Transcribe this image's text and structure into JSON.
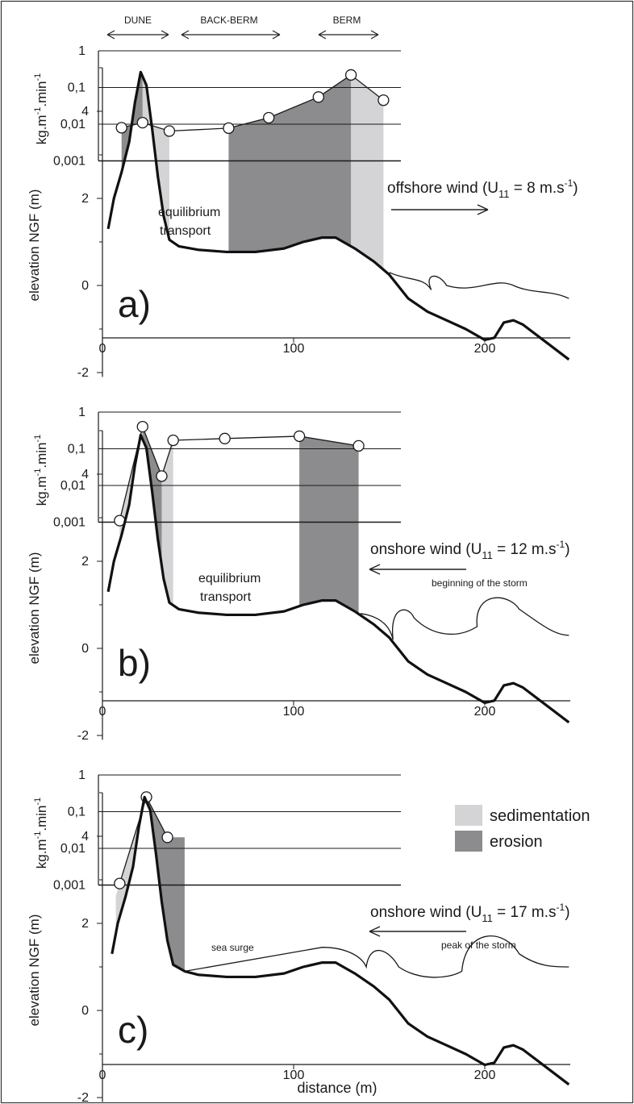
{
  "zones": [
    "DUNE",
    "BACK-BERM",
    "BERM"
  ],
  "axes": {
    "flux_ylabel": "kg.m-1.min-1",
    "flux_ylabel_base": "kg.m",
    "flux_ylabel_exp1": "-1",
    "flux_ylabel_mid": ".min",
    "flux_ylabel_exp2": "-1",
    "flux_ticks": [
      "1",
      "0,1",
      "0,01",
      "0,001"
    ],
    "elev_ylabel": "elevation NGF (m)",
    "elev_ticks": [
      "4",
      "2",
      "0",
      "-2"
    ],
    "x_ticks": [
      "0",
      "100",
      "200"
    ],
    "xlabel": "distance (m)"
  },
  "legend": {
    "sedimentation_label": "sedimentation",
    "erosion_label": "erosion",
    "sedimentation_color": "#d4d4d6",
    "erosion_color": "#8c8c8f"
  },
  "panels": [
    {
      "letter": "a)",
      "wind_main": "offshore wind (U",
      "wind_sub": "11",
      "wind_tail": " = 8 m.s",
      "wind_exp": "-1",
      "wind_close": ")",
      "wind_note": "",
      "annotation_line1": "equilibrium",
      "annotation_line2": "transport",
      "surge_label": ""
    },
    {
      "letter": "b)",
      "wind_main": "onshore wind (U",
      "wind_sub": "11",
      "wind_tail": " = 12 m.s",
      "wind_exp": "-1",
      "wind_close": ")",
      "wind_note": "beginning of the storm",
      "annotation_line1": "equilibrium",
      "annotation_line2": "transport",
      "surge_label": ""
    },
    {
      "letter": "c)",
      "wind_main": "onshore wind (U",
      "wind_sub": "11",
      "wind_tail": " = 17 m.s",
      "wind_exp": "-1",
      "wind_close": ")",
      "wind_note": "peak of the storm",
      "annotation_line1": "",
      "annotation_line2": "",
      "surge_label": "sea surge"
    }
  ],
  "chart_data": [
    {
      "type": "line",
      "panel": "a",
      "x_unit": "m",
      "flux_log_scale": true,
      "flux_ylim": [
        0.001,
        1
      ],
      "elev_ylim": [
        -2,
        5
      ],
      "xlim": [
        0,
        245
      ],
      "flux_points": [
        [
          10,
          0.008
        ],
        [
          21,
          0.011
        ],
        [
          35,
          0.0065
        ],
        [
          66,
          0.0078
        ],
        [
          87,
          0.015
        ],
        [
          113,
          0.055
        ],
        [
          130,
          0.22
        ],
        [
          147,
          0.045
        ]
      ],
      "profile": [
        [
          3,
          1.3
        ],
        [
          6,
          2.0
        ],
        [
          10,
          2.6
        ],
        [
          14,
          3.3
        ],
        [
          17,
          4.2
        ],
        [
          20,
          4.9
        ],
        [
          23,
          4.6
        ],
        [
          26,
          3.6
        ],
        [
          29,
          2.5
        ],
        [
          32,
          1.6
        ],
        [
          35,
          1.05
        ],
        [
          40,
          0.9
        ],
        [
          50,
          0.82
        ],
        [
          65,
          0.77
        ],
        [
          80,
          0.77
        ],
        [
          95,
          0.85
        ],
        [
          105,
          1.0
        ],
        [
          115,
          1.1
        ],
        [
          122,
          1.1
        ],
        [
          132,
          0.85
        ],
        [
          142,
          0.55
        ],
        [
          150,
          0.25
        ],
        [
          160,
          -0.3
        ],
        [
          170,
          -0.6
        ],
        [
          180,
          -0.8
        ],
        [
          190,
          -1.0
        ],
        [
          200,
          -1.25
        ],
        [
          205,
          -1.2
        ],
        [
          210,
          -0.85
        ],
        [
          215,
          -0.8
        ],
        [
          220,
          -0.9
        ],
        [
          232,
          -1.3
        ],
        [
          244,
          -1.7
        ]
      ],
      "sedimentation_x": [
        [
          21,
          35
        ],
        [
          130,
          147
        ]
      ],
      "erosion_x": [
        [
          10,
          21
        ],
        [
          66,
          130
        ]
      ],
      "equilibrium_x": [
        [
          35,
          66
        ]
      ]
    },
    {
      "type": "line",
      "panel": "b",
      "x_unit": "m",
      "flux_log_scale": true,
      "flux_ylim": [
        0.001,
        1
      ],
      "elev_ylim": [
        -2,
        5
      ],
      "xlim": [
        0,
        245
      ],
      "flux_points": [
        [
          9,
          0.0011
        ],
        [
          21,
          0.4
        ],
        [
          31,
          0.018
        ],
        [
          37,
          0.17
        ],
        [
          64,
          0.19
        ],
        [
          103,
          0.22
        ],
        [
          134,
          0.12
        ]
      ],
      "profile": [
        [
          3,
          1.3
        ],
        [
          6,
          2.0
        ],
        [
          10,
          2.6
        ],
        [
          14,
          3.3
        ],
        [
          17,
          4.2
        ],
        [
          20,
          4.9
        ],
        [
          23,
          4.6
        ],
        [
          26,
          3.6
        ],
        [
          29,
          2.5
        ],
        [
          32,
          1.6
        ],
        [
          35,
          1.05
        ],
        [
          40,
          0.9
        ],
        [
          50,
          0.82
        ],
        [
          65,
          0.77
        ],
        [
          80,
          0.77
        ],
        [
          95,
          0.85
        ],
        [
          105,
          1.0
        ],
        [
          115,
          1.1
        ],
        [
          122,
          1.1
        ],
        [
          132,
          0.85
        ],
        [
          142,
          0.55
        ],
        [
          150,
          0.25
        ],
        [
          160,
          -0.3
        ],
        [
          170,
          -0.6
        ],
        [
          180,
          -0.8
        ],
        [
          190,
          -1.0
        ],
        [
          200,
          -1.25
        ],
        [
          205,
          -1.2
        ],
        [
          210,
          -0.85
        ],
        [
          215,
          -0.8
        ],
        [
          220,
          -0.9
        ],
        [
          232,
          -1.3
        ],
        [
          244,
          -1.7
        ]
      ],
      "sedimentation_x": [
        [
          9,
          21
        ],
        [
          31,
          37
        ]
      ],
      "erosion_x": [
        [
          21,
          31
        ],
        [
          103,
          134
        ]
      ],
      "equilibrium_x": [
        [
          37,
          103
        ]
      ]
    },
    {
      "type": "line",
      "panel": "c",
      "x_unit": "m",
      "flux_log_scale": true,
      "flux_ylim": [
        0.001,
        1
      ],
      "elev_ylim": [
        -2,
        5
      ],
      "xlim": [
        0,
        245
      ],
      "flux_points": [
        [
          9,
          0.0011
        ],
        [
          23,
          0.25
        ],
        [
          34,
          0.02
        ]
      ],
      "profile": [
        [
          5,
          1.3
        ],
        [
          8,
          2.0
        ],
        [
          12,
          2.6
        ],
        [
          16,
          3.3
        ],
        [
          19,
          4.2
        ],
        [
          22,
          4.9
        ],
        [
          25,
          4.6
        ],
        [
          28,
          3.6
        ],
        [
          31,
          2.5
        ],
        [
          34,
          1.6
        ],
        [
          37,
          1.05
        ],
        [
          43,
          0.9
        ],
        [
          50,
          0.82
        ],
        [
          65,
          0.77
        ],
        [
          80,
          0.77
        ],
        [
          95,
          0.85
        ],
        [
          105,
          1.0
        ],
        [
          115,
          1.1
        ],
        [
          122,
          1.1
        ],
        [
          132,
          0.85
        ],
        [
          142,
          0.55
        ],
        [
          150,
          0.25
        ],
        [
          160,
          -0.3
        ],
        [
          170,
          -0.6
        ],
        [
          180,
          -0.8
        ],
        [
          190,
          -1.0
        ],
        [
          200,
          -1.25
        ],
        [
          205,
          -1.2
        ],
        [
          210,
          -0.85
        ],
        [
          215,
          -0.8
        ],
        [
          220,
          -0.9
        ],
        [
          232,
          -1.3
        ],
        [
          244,
          -1.7
        ]
      ],
      "sedimentation_x": [
        [
          7,
          23
        ]
      ],
      "erosion_x": [
        [
          23,
          43
        ]
      ],
      "equilibrium_x": []
    }
  ]
}
